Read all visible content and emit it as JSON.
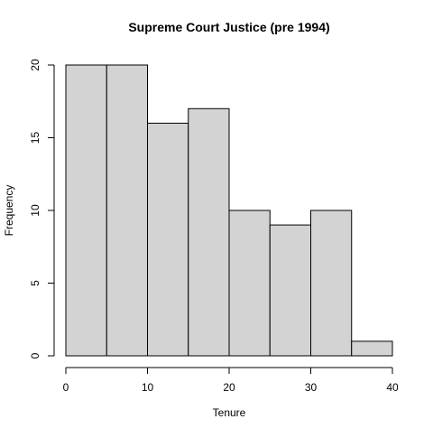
{
  "chart_data": {
    "type": "bar",
    "title": "Supreme Court Justice (pre 1994)",
    "xlabel": "Tenure",
    "ylabel": "Frequency",
    "bins": [
      {
        "start": 0,
        "end": 5,
        "value": 20
      },
      {
        "start": 5,
        "end": 10,
        "value": 20
      },
      {
        "start": 10,
        "end": 15,
        "value": 16
      },
      {
        "start": 15,
        "end": 20,
        "value": 17
      },
      {
        "start": 20,
        "end": 25,
        "value": 10
      },
      {
        "start": 25,
        "end": 30,
        "value": 9
      },
      {
        "start": 30,
        "end": 35,
        "value": 10
      },
      {
        "start": 35,
        "end": 40,
        "value": 1
      }
    ],
    "xlim": [
      0,
      40
    ],
    "ylim": [
      0,
      20
    ],
    "xticks": [
      0,
      10,
      20,
      30,
      40
    ],
    "yticks": [
      0,
      5,
      10,
      15,
      20
    ],
    "bar_color": "#d3d3d3",
    "border_color": "#000000",
    "grid": false,
    "legend": "none"
  }
}
